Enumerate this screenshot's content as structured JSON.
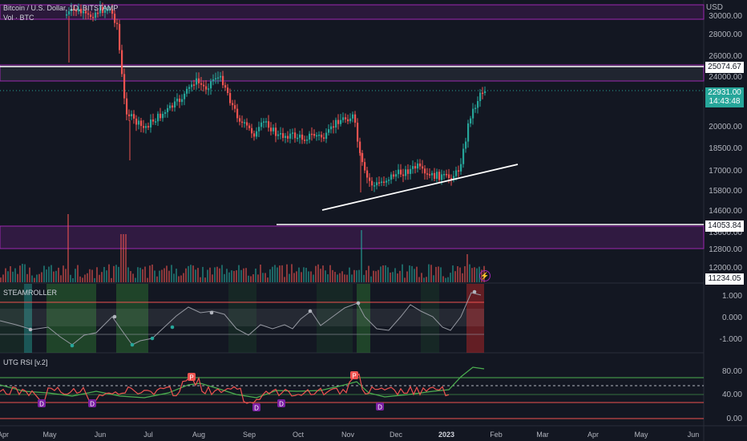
{
  "header": {
    "symbol_line": "Bitcoin / U.S. Dollar, 1D, BITSTAMP",
    "volume_line": "Vol · BTC",
    "currency": "USD"
  },
  "price_axis": [
    "30000.00",
    "28000.00",
    "26000.00",
    "24000.00",
    "22000.00",
    "20000.00",
    "18500.00",
    "17000.00",
    "15800.00",
    "14600.00",
    "13600.00",
    "12800.00",
    "12000.00"
  ],
  "price_tags": {
    "upper_level": "25074.67",
    "last_price": "22931.00",
    "countdown": "14:43:48",
    "lower_level": "14053.84",
    "volume": "11234.05"
  },
  "steamroller": {
    "title": "STEAMROLLER",
    "axis": [
      "1.000",
      "0.000",
      "-1.000"
    ]
  },
  "rsi": {
    "title": "UTG RSI [v.2]",
    "axis": [
      "80.00",
      "40.00",
      "0.00"
    ],
    "markers": {
      "peak": "P",
      "dip": "D"
    }
  },
  "time_axis": [
    {
      "label": "Apr",
      "bold": false
    },
    {
      "label": "May",
      "bold": false
    },
    {
      "label": "Jun",
      "bold": false
    },
    {
      "label": "Jul",
      "bold": false
    },
    {
      "label": "Aug",
      "bold": false
    },
    {
      "label": "Sep",
      "bold": false
    },
    {
      "label": "Oct",
      "bold": false
    },
    {
      "label": "Nov",
      "bold": false
    },
    {
      "label": "Dec",
      "bold": false
    },
    {
      "label": "2023",
      "bold": true
    },
    {
      "label": "Feb",
      "bold": false
    },
    {
      "label": "Mar",
      "bold": false
    },
    {
      "label": "Apr",
      "bold": false
    },
    {
      "label": "May",
      "bold": false
    },
    {
      "label": "Jun",
      "bold": false
    }
  ],
  "colors": {
    "background": "#131722",
    "bull": "#26a69a",
    "bear": "#ef5350",
    "zone": "#9c27b0",
    "rsi_line": "#ef5350",
    "rsi_signal": "#4caf50",
    "osc_line": "#9598a1"
  }
}
